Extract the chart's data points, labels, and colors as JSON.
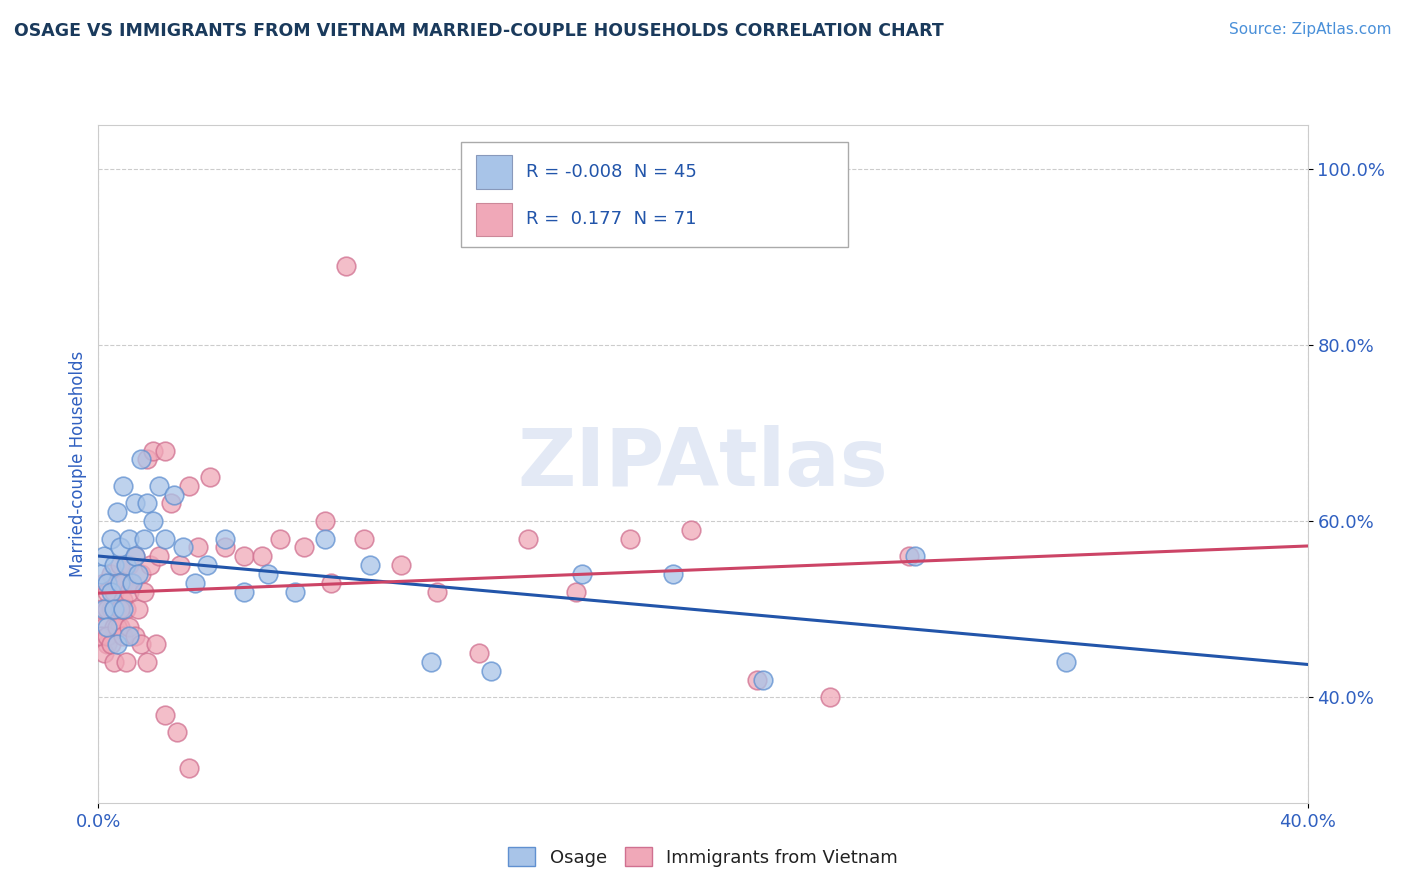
{
  "title": "OSAGE VS IMMIGRANTS FROM VIETNAM MARRIED-COUPLE HOUSEHOLDS CORRELATION CHART",
  "source": "Source: ZipAtlas.com",
  "ylabel": "Married-couple Households",
  "xlim": [
    0.0,
    0.4
  ],
  "ylim": [
    0.28,
    1.05
  ],
  "xticks": [
    0.0,
    0.4
  ],
  "xtick_labels": [
    "0.0%",
    "40.0%"
  ],
  "yticks": [
    0.4,
    0.6,
    0.8,
    1.0
  ],
  "ytick_labels": [
    "40.0%",
    "60.0%",
    "80.0%",
    "100.0%"
  ],
  "legend_labels": [
    "Osage",
    "Immigrants from Vietnam"
  ],
  "legend_R": [
    "-0.008",
    "0.177"
  ],
  "legend_N": [
    "45",
    "71"
  ],
  "blue_color": "#a8c4e8",
  "pink_color": "#f0a8b8",
  "blue_edge_color": "#6090d0",
  "pink_edge_color": "#d07090",
  "blue_line_color": "#2255aa",
  "pink_line_color": "#cc4466",
  "watermark": "ZIPAtlas",
  "title_color": "#1a3a5c",
  "source_color": "#4a90d9",
  "axis_label_color": "#3060c0",
  "tick_color": "#3060c0",
  "background": "#ffffff",
  "osage_x": [
    0.001,
    0.002,
    0.002,
    0.003,
    0.003,
    0.004,
    0.004,
    0.005,
    0.005,
    0.006,
    0.006,
    0.007,
    0.007,
    0.008,
    0.008,
    0.009,
    0.01,
    0.01,
    0.011,
    0.012,
    0.012,
    0.013,
    0.014,
    0.015,
    0.016,
    0.018,
    0.02,
    0.022,
    0.025,
    0.028,
    0.032,
    0.036,
    0.042,
    0.048,
    0.056,
    0.065,
    0.075,
    0.09,
    0.11,
    0.13,
    0.16,
    0.19,
    0.22,
    0.27,
    0.32
  ],
  "osage_y": [
    0.54,
    0.5,
    0.56,
    0.48,
    0.53,
    0.52,
    0.58,
    0.5,
    0.55,
    0.46,
    0.61,
    0.53,
    0.57,
    0.5,
    0.64,
    0.55,
    0.58,
    0.47,
    0.53,
    0.56,
    0.62,
    0.54,
    0.67,
    0.58,
    0.62,
    0.6,
    0.64,
    0.58,
    0.63,
    0.57,
    0.53,
    0.55,
    0.58,
    0.52,
    0.54,
    0.52,
    0.58,
    0.55,
    0.44,
    0.43,
    0.54,
    0.54,
    0.42,
    0.56,
    0.44
  ],
  "vietnam_x": [
    0.001,
    0.002,
    0.002,
    0.003,
    0.003,
    0.004,
    0.004,
    0.005,
    0.005,
    0.006,
    0.006,
    0.007,
    0.007,
    0.008,
    0.008,
    0.009,
    0.01,
    0.01,
    0.011,
    0.012,
    0.013,
    0.014,
    0.015,
    0.016,
    0.017,
    0.018,
    0.02,
    0.022,
    0.024,
    0.027,
    0.03,
    0.033,
    0.037,
    0.042,
    0.048,
    0.054,
    0.06,
    0.068,
    0.077,
    0.088,
    0.1,
    0.112,
    0.126,
    0.142,
    0.158,
    0.176,
    0.196,
    0.218,
    0.242,
    0.268,
    0.001,
    0.002,
    0.003,
    0.003,
    0.004,
    0.005,
    0.005,
    0.006,
    0.007,
    0.008,
    0.009,
    0.01,
    0.012,
    0.014,
    0.016,
    0.019,
    0.022,
    0.026,
    0.03,
    0.075,
    0.082
  ],
  "vietnam_y": [
    0.5,
    0.48,
    0.53,
    0.46,
    0.52,
    0.54,
    0.5,
    0.48,
    0.52,
    0.53,
    0.5,
    0.55,
    0.48,
    0.53,
    0.51,
    0.5,
    0.52,
    0.55,
    0.53,
    0.56,
    0.5,
    0.54,
    0.52,
    0.67,
    0.55,
    0.68,
    0.56,
    0.68,
    0.62,
    0.55,
    0.64,
    0.57,
    0.65,
    0.57,
    0.56,
    0.56,
    0.58,
    0.57,
    0.53,
    0.58,
    0.55,
    0.52,
    0.45,
    0.58,
    0.52,
    0.58,
    0.59,
    0.42,
    0.4,
    0.56,
    0.47,
    0.45,
    0.5,
    0.47,
    0.46,
    0.5,
    0.44,
    0.48,
    0.5,
    0.47,
    0.44,
    0.48,
    0.47,
    0.46,
    0.44,
    0.46,
    0.38,
    0.36,
    0.32,
    0.6,
    0.89
  ]
}
